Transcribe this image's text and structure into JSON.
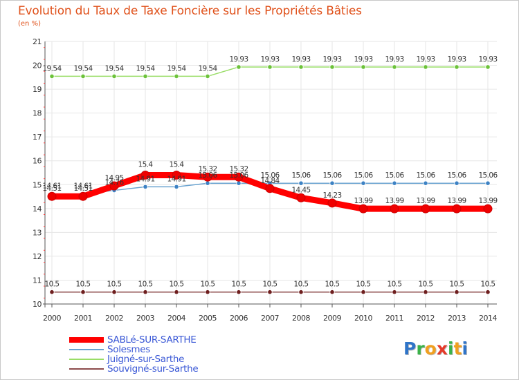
{
  "title": "Evolution du Taux de Taxe Foncière sur les Propriétés Bâties",
  "unit_label": "(en %)",
  "logo_text": "Proxiti",
  "logo_letters": [
    {
      "ch": "P",
      "color": "#2f74c8"
    },
    {
      "ch": "r",
      "color": "#3bb24a"
    },
    {
      "ch": "o",
      "color": "#f0a020"
    },
    {
      "ch": "x",
      "color": "#e53a2a"
    },
    {
      "ch": "i",
      "color": "#3bb24a"
    },
    {
      "ch": "t",
      "color": "#f0a020"
    },
    {
      "ch": "i",
      "color": "#2f74c8"
    }
  ],
  "chart_data": {
    "type": "line",
    "title": "Evolution du Taux de Taxe Foncière sur les Propriétés Bâties",
    "ylabel": "(en %)",
    "xlabel": "",
    "ylim": [
      10,
      21
    ],
    "yticks": [
      "10",
      "11",
      "12",
      "13",
      "14",
      "15",
      "16",
      "17",
      "18",
      "19",
      "20",
      "21"
    ],
    "categories": [
      "2000",
      "2001",
      "2002",
      "2003",
      "2004",
      "2005",
      "2006",
      "2007",
      "2008",
      "2009",
      "2010",
      "2011",
      "2012",
      "2013",
      "2014"
    ],
    "grid": true,
    "series": [
      {
        "name": "SABLé-SUR-SARTHE",
        "color": "#ff0000",
        "marker_color": "#ee0000",
        "values": [
          14.51,
          14.51,
          14.95,
          15.4,
          15.4,
          15.32,
          15.32,
          14.84,
          14.45,
          14.23,
          13.99,
          13.99,
          13.99,
          13.99,
          13.99
        ],
        "labels": [
          "14.51",
          "14.51",
          "14.95",
          "15.4",
          "15.4",
          "15.32",
          "15.32",
          "14.84",
          "14.45",
          "14.23",
          "13.99",
          "13.99",
          "13.99",
          "13.99",
          "13.99"
        ]
      },
      {
        "name": "Solesmes",
        "color": "#6aa3d0",
        "marker_color": "#3d82c4",
        "values": [
          14.61,
          14.61,
          14.76,
          14.91,
          14.91,
          15.06,
          15.06,
          15.06,
          15.06,
          15.06,
          15.06,
          15.06,
          15.06,
          15.06,
          15.06
        ],
        "labels": [
          "14.61",
          "14.61",
          "14.76",
          "14.91",
          "14.91",
          "15.06",
          "15.06",
          "15.06",
          "15.06",
          "15.06",
          "15.06",
          "15.06",
          "15.06",
          "15.06",
          "15.06"
        ]
      },
      {
        "name": "Juigné-sur-Sarthe",
        "color": "#99dd66",
        "marker_color": "#6cc23a",
        "values": [
          19.54,
          19.54,
          19.54,
          19.54,
          19.54,
          19.54,
          19.93,
          19.93,
          19.93,
          19.93,
          19.93,
          19.93,
          19.93,
          19.93,
          19.93
        ],
        "labels": [
          "19.54",
          "19.54",
          "19.54",
          "19.54",
          "19.54",
          "19.54",
          "19.93",
          "19.93",
          "19.93",
          "19.93",
          "19.93",
          "19.93",
          "19.93",
          "19.93",
          "19.93"
        ]
      },
      {
        "name": "Souvigné-sur-Sarthe",
        "color": "#8b4a4a",
        "marker_color": "#6e1e1e",
        "values": [
          10.5,
          10.5,
          10.5,
          10.5,
          10.5,
          10.5,
          10.5,
          10.5,
          10.5,
          10.5,
          10.5,
          10.5,
          10.5,
          10.5,
          10.5
        ],
        "labels": [
          "10.5",
          "10.5",
          "10.5",
          "10.5",
          "10.5",
          "10.5",
          "10.5",
          "10.5",
          "10.5",
          "10.5",
          "10.5",
          "10.5",
          "10.5",
          "10.5",
          "10.5"
        ]
      }
    ]
  }
}
